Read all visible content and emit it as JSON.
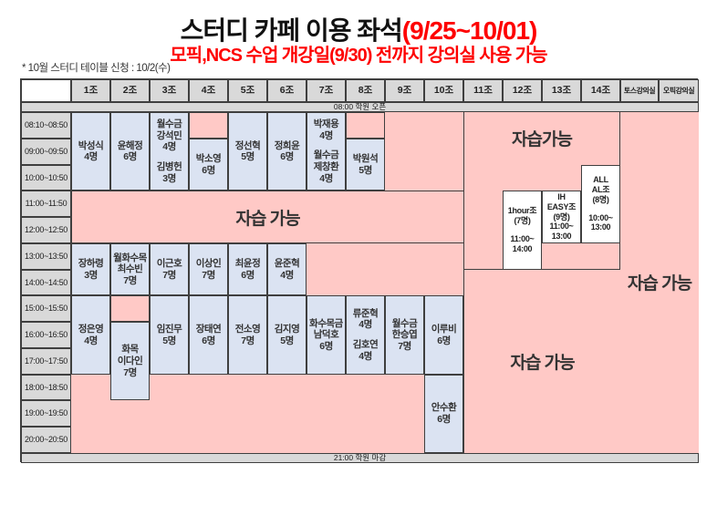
{
  "title": {
    "black": "스터디 카페 이용 좌석",
    "red": "(9/25~10/01)"
  },
  "subtitle": "모픽,NCS 수업 개강일(9/30) 전까지 강의실 사용 가능",
  "note": "* 10월 스터디 테이블 신청 : 10/2(수)",
  "colors": {
    "accent_red": "#fe0000",
    "seat_blue": "#dbe3f2",
    "free_pink": "#ffc9c6",
    "header_gray": "#d9d9d9",
    "border": "#3f3f3f"
  },
  "grid": {
    "corner": "",
    "columns": [
      "1조",
      "2조",
      "3조",
      "4조",
      "5조",
      "6조",
      "7조",
      "8조",
      "9조",
      "10조",
      "11조",
      "12조",
      "13조",
      "14조",
      "토스강의실",
      "오픽강의실"
    ],
    "times": [
      "08:10~08:50",
      "09:00~09:50",
      "10:00~10:50",
      "11:00~11:50",
      "12:00~12:50",
      "13:00~13:50",
      "14:00~14:50",
      "15:00~15:50",
      "16:00~16:50",
      "17:00~17:50",
      "18:00~18:50",
      "19:00~19:50",
      "20:00~20:50"
    ],
    "open_banner": "08:00 학원 오픈",
    "close_banner": "21:00 학원 마감",
    "regions": [
      {
        "name": "free-region-center",
        "c": 2,
        "r": 6,
        "cs": 10,
        "rs": 2,
        "label": "자습 가능",
        "borders": "t l b",
        "align": "center"
      },
      {
        "name": "free-region-rooms-morning",
        "c": 12,
        "r": 3,
        "cs": 4,
        "rs": 6,
        "label": "자습가능",
        "borders": "l r b",
        "align": "top"
      },
      {
        "name": "free-region-rooms-afternoon",
        "c": 12,
        "r": 9,
        "cs": 4,
        "rs": 7,
        "label": "자습 가능",
        "borders": "l",
        "align": "center"
      },
      {
        "name": "free-region-lecture-rooms",
        "c": 16,
        "r": 3,
        "cs": 2,
        "rs": 13,
        "label": "자습 가능",
        "borders": "",
        "align": "center"
      }
    ],
    "cells": [
      {
        "name": "seat-cell",
        "c": 2,
        "r": 3,
        "rs": 3,
        "type": "blue",
        "lines": [
          "박성식",
          "4명"
        ]
      },
      {
        "name": "seat-cell",
        "c": 3,
        "r": 3,
        "rs": 3,
        "type": "blue",
        "lines": [
          "윤해정",
          "6명"
        ]
      },
      {
        "name": "seat-cell",
        "c": 4,
        "r": 3,
        "rs": 3,
        "type": "blue",
        "lines": [
          "월수금",
          "강석민",
          "4명",
          "",
          "김병헌",
          "3명"
        ]
      },
      {
        "name": "empty-slot",
        "c": 5,
        "r": 3,
        "rs": 1,
        "type": "pinkcell",
        "lines": []
      },
      {
        "name": "seat-cell",
        "c": 5,
        "r": 4,
        "rs": 2,
        "type": "blue",
        "lines": [
          "박소영",
          "6명"
        ]
      },
      {
        "name": "seat-cell",
        "c": 6,
        "r": 3,
        "rs": 3,
        "type": "blue",
        "lines": [
          "정선혁",
          "5명"
        ]
      },
      {
        "name": "seat-cell",
        "c": 7,
        "r": 3,
        "rs": 3,
        "type": "blue",
        "lines": [
          "정희윤",
          "6명"
        ]
      },
      {
        "name": "seat-cell",
        "c": 8,
        "r": 3,
        "rs": 3,
        "type": "blue",
        "lines": [
          "박재용",
          "4명",
          "",
          "월수금",
          "제창환",
          "4명"
        ]
      },
      {
        "name": "empty-slot",
        "c": 9,
        "r": 3,
        "rs": 1,
        "type": "pinkcell",
        "lines": []
      },
      {
        "name": "seat-cell",
        "c": 9,
        "r": 4,
        "rs": 2,
        "type": "blue",
        "lines": [
          "박원석",
          "5명"
        ]
      },
      {
        "name": "seat-cell",
        "c": 2,
        "r": 8,
        "rs": 2,
        "type": "blue",
        "lines": [
          "장하령",
          "3명"
        ]
      },
      {
        "name": "seat-cell",
        "c": 3,
        "r": 8,
        "rs": 2,
        "type": "blue",
        "lines": [
          "월화수목",
          "최수빈",
          "7명"
        ]
      },
      {
        "name": "seat-cell",
        "c": 4,
        "r": 8,
        "rs": 2,
        "type": "blue",
        "lines": [
          "이근호",
          "7명"
        ]
      },
      {
        "name": "seat-cell",
        "c": 5,
        "r": 8,
        "rs": 2,
        "type": "blue",
        "lines": [
          "이상인",
          "7명"
        ]
      },
      {
        "name": "seat-cell",
        "c": 6,
        "r": 8,
        "rs": 2,
        "type": "blue",
        "lines": [
          "최윤정",
          "6명"
        ]
      },
      {
        "name": "seat-cell",
        "c": 7,
        "r": 8,
        "rs": 2,
        "type": "blue",
        "lines": [
          "윤준혁",
          "4명"
        ]
      },
      {
        "name": "seat-cell",
        "c": 2,
        "r": 10,
        "rs": 3,
        "type": "blue",
        "lines": [
          "정은영",
          "4명"
        ]
      },
      {
        "name": "empty-slot",
        "c": 3,
        "r": 10,
        "rs": 1,
        "type": "pinkcell",
        "lines": []
      },
      {
        "name": "seat-cell",
        "c": 3,
        "r": 11,
        "rs": 3,
        "type": "blue",
        "lines": [
          "화목",
          "이다인",
          "7명"
        ]
      },
      {
        "name": "seat-cell",
        "c": 4,
        "r": 10,
        "rs": 3,
        "type": "blue",
        "lines": [
          "임진무",
          "5명"
        ]
      },
      {
        "name": "seat-cell",
        "c": 5,
        "r": 10,
        "rs": 3,
        "type": "blue",
        "lines": [
          "장태연",
          "6명"
        ]
      },
      {
        "name": "seat-cell",
        "c": 6,
        "r": 10,
        "rs": 3,
        "type": "blue",
        "lines": [
          "전소영",
          "7명"
        ]
      },
      {
        "name": "seat-cell",
        "c": 7,
        "r": 10,
        "rs": 3,
        "type": "blue",
        "lines": [
          "김지영",
          "5명"
        ]
      },
      {
        "name": "seat-cell",
        "c": 8,
        "r": 10,
        "rs": 3,
        "type": "blue",
        "lines": [
          "화수목금",
          "남덕호",
          "6명"
        ]
      },
      {
        "name": "seat-cell",
        "c": 9,
        "r": 10,
        "rs": 3,
        "type": "blue",
        "lines": [
          "류준혁",
          "4명",
          "",
          "김호연",
          "4명"
        ]
      },
      {
        "name": "seat-cell",
        "c": 10,
        "r": 10,
        "rs": 3,
        "type": "blue",
        "lines": [
          "월수금",
          "한승엽",
          "7명"
        ]
      },
      {
        "name": "seat-cell",
        "c": 11,
        "r": 10,
        "rs": 3,
        "type": "blue",
        "lines": [
          "이루비",
          "6명"
        ]
      },
      {
        "name": "seat-cell",
        "c": 11,
        "r": 13,
        "rs": 3,
        "type": "blue",
        "lines": [
          "안수환",
          "6명"
        ]
      },
      {
        "name": "class-box",
        "c": 13,
        "r": 6,
        "rs": 3,
        "type": "whitebox",
        "lines": [
          "1hour조",
          "(7명)",
          "",
          "11:00~",
          "14:00"
        ]
      },
      {
        "name": "class-box",
        "c": 14,
        "r": 6,
        "rs": 2,
        "type": "whitebox",
        "lines": [
          "IH",
          "EASY조",
          "(9명)",
          "11:00~",
          "13:00"
        ]
      },
      {
        "name": "class-box",
        "c": 15,
        "r": 5,
        "rs": 3,
        "type": "whitebox",
        "lines": [
          "ALL",
          "AL조",
          "(8명)",
          "",
          "10:00~",
          "13:00"
        ]
      }
    ]
  }
}
